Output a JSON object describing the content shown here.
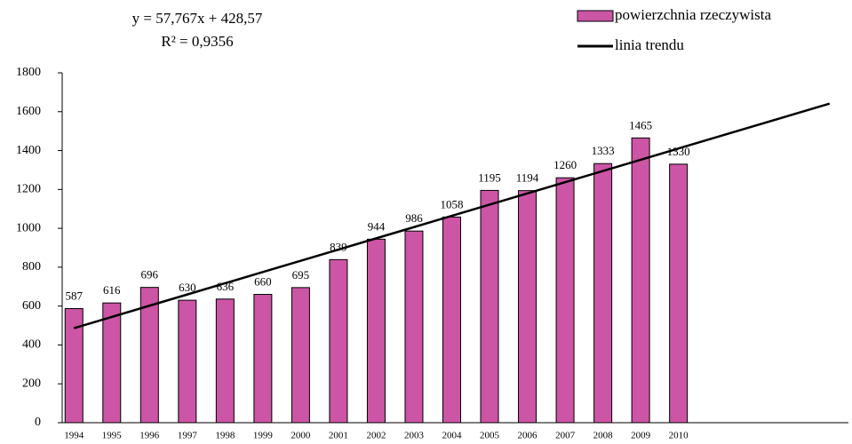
{
  "chart_data": {
    "type": "bar",
    "annotations": [
      "y = 57,767x + 428,57",
      "R² = 0,9356"
    ],
    "categories": [
      "1994",
      "1995",
      "1996",
      "1997",
      "1998",
      "1999",
      "2000",
      "2001",
      "2002",
      "2003",
      "2004",
      "2005",
      "2006",
      "2007",
      "2008",
      "2009",
      "2010",
      null,
      null,
      null,
      null
    ],
    "series": [
      {
        "name": "powierzchnia rzeczywista",
        "color": "#cc55a5",
        "type": "bar",
        "values": [
          587,
          616,
          696,
          630,
          636,
          660,
          695,
          839,
          944,
          986,
          1058,
          1195,
          1194,
          1260,
          1333,
          1465,
          1330,
          null,
          null,
          null,
          null
        ]
      },
      {
        "name": "linia trendu",
        "color": "#000000",
        "type": "line",
        "values": [
          486.3,
          544.1,
          601.9,
          659.6,
          717.4,
          775.2,
          832.9,
          890.7,
          948.5,
          1006.2,
          1064.0,
          1121.8,
          1179.5,
          1237.3,
          1295.1,
          1352.8,
          1410.6,
          1468.4,
          1526.1,
          1583.9,
          1641.7
        ]
      }
    ],
    "ylim": [
      0,
      1800
    ],
    "yticks": [
      0,
      200,
      400,
      600,
      800,
      1000,
      1200,
      1400,
      1600,
      1800
    ],
    "grid": false,
    "legend": "top-right"
  }
}
